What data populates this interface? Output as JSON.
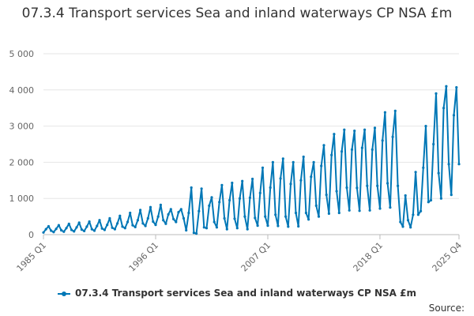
{
  "chart_data": {
    "type": "line",
    "title": "07.3.4 Transport services Sea and inland waterways CP NSA £m",
    "xlabel": "",
    "ylabel": "",
    "ylim": [
      0,
      5000
    ],
    "grid": true,
    "y_ticks": [
      0,
      1000,
      2000,
      3000,
      4000,
      5000
    ],
    "y_tick_labels": [
      "0",
      "1 000",
      "2 000",
      "3 000",
      "4 000",
      "5 000"
    ],
    "x_tick_labels": [
      "1985 Q1",
      "1996 Q1",
      "2007 Q1",
      "2018 Q1",
      "2025 Q4"
    ],
    "x_tick_indices": [
      0,
      44,
      88,
      132,
      163
    ],
    "legend_position": "bottom",
    "series": [
      {
        "name": "07.3.4 Transport services Sea and inland waterways CP NSA £m",
        "color": "#0077b6",
        "values": [
          60,
          150,
          230,
          110,
          70,
          160,
          260,
          120,
          80,
          180,
          300,
          130,
          90,
          200,
          330,
          140,
          100,
          220,
          360,
          150,
          110,
          240,
          400,
          170,
          130,
          270,
          450,
          190,
          150,
          310,
          520,
          220,
          180,
          350,
          600,
          260,
          210,
          400,
          680,
          310,
          240,
          450,
          760,
          360,
          270,
          500,
          820,
          400,
          300,
          560,
          700,
          430,
          350,
          620,
          700,
          450,
          120,
          600,
          1300,
          50,
          30,
          650,
          1270,
          200,
          180,
          800,
          1030,
          350,
          200,
          900,
          1370,
          450,
          150,
          950,
          1430,
          440,
          180,
          1000,
          1480,
          500,
          150,
          1020,
          1540,
          460,
          250,
          1150,
          1850,
          500,
          250,
          1300,
          2000,
          550,
          240,
          1550,
          2100,
          500,
          220,
          1400,
          2000,
          600,
          230,
          1500,
          2150,
          600,
          420,
          1600,
          2000,
          800,
          500,
          1900,
          2470,
          1100,
          580,
          2200,
          2780,
          1200,
          600,
          2300,
          2900,
          1300,
          670,
          2350,
          2870,
          1290,
          660,
          2400,
          2900,
          1350,
          670,
          2350,
          2950,
          1350,
          720,
          2600,
          3380,
          1420,
          750,
          2700,
          3420,
          1350,
          350,
          220,
          1080,
          400,
          200,
          550,
          1730,
          550,
          650,
          1850,
          3000,
          900,
          950,
          2500,
          3900,
          1700,
          1000,
          3500,
          4100,
          1950,
          1100,
          3300,
          4070,
          1950
        ]
      }
    ]
  },
  "legend": {
    "label": "07.3.4 Transport services Sea and inland waterways CP NSA £m"
  },
  "source": {
    "label": "Source:"
  }
}
